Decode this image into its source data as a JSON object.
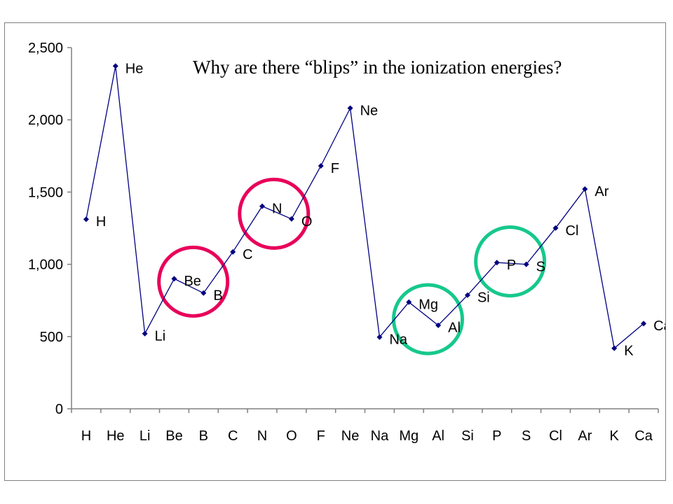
{
  "chart_data": {
    "type": "line",
    "title": "Why are there “blips” in the ionization energies?",
    "xlabel": "",
    "ylabel": "",
    "ylim": [
      0,
      2500
    ],
    "yticks": [
      0,
      500,
      1000,
      1500,
      2000,
      2500
    ],
    "ytick_labels": [
      "0",
      "500",
      "1,000",
      "1,500",
      "2,000",
      "2,500"
    ],
    "grid": false,
    "legend": "none",
    "categories": [
      "H",
      "He",
      "Li",
      "Be",
      "B",
      "C",
      "N",
      "O",
      "F",
      "Ne",
      "Na",
      "Mg",
      "Al",
      "Si",
      "P",
      "S",
      "Cl",
      "Ar",
      "K",
      "Ca"
    ],
    "series": [
      {
        "values": [
          1312,
          2372,
          520,
          900,
          801,
          1086,
          1402,
          1314,
          1681,
          2081,
          496,
          738,
          578,
          787,
          1012,
          1000,
          1251,
          1521,
          419,
          590
        ]
      }
    ],
    "point_labels": [
      "H",
      "He",
      "Li",
      "Be",
      "B",
      "C",
      "N",
      "O",
      "F",
      "Ne",
      "Na",
      "Mg",
      "Al",
      "Si",
      "P",
      "S",
      "Cl",
      "Ar",
      "K",
      "Ca"
    ],
    "highlight_circles": [
      {
        "center_x_value": 3.65,
        "center_y_value": 880,
        "color": "#e8005a"
      },
      {
        "center_x_value": 6.4,
        "center_y_value": 1350,
        "color": "#e8005a"
      },
      {
        "center_x_value": 11.65,
        "center_y_value": 620,
        "color": "#16c88c"
      },
      {
        "center_x_value": 14.45,
        "center_y_value": 1020,
        "color": "#16c88c"
      }
    ],
    "colors": {
      "line": "#000080",
      "marker": "#000080",
      "axis": "#808080"
    }
  }
}
